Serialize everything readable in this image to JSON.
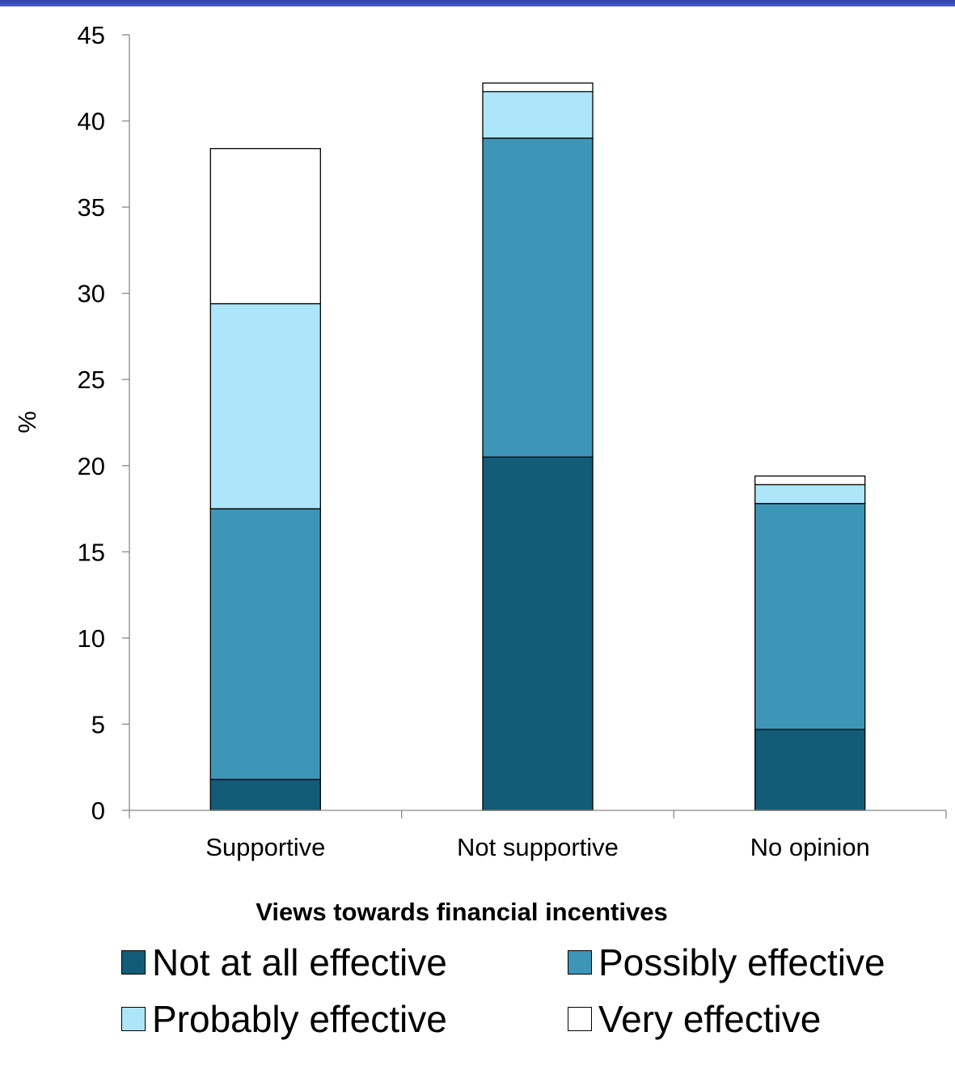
{
  "chart_data": {
    "type": "bar",
    "stacked": true,
    "categories": [
      "Supportive",
      "Not supportive",
      "No opinion"
    ],
    "series": [
      {
        "name": "Not at all effective",
        "color": "#135c77",
        "values": [
          1.8,
          20.5,
          4.7
        ]
      },
      {
        "name": "Possibly effective",
        "color": "#3d96b8",
        "values": [
          15.7,
          18.5,
          13.1
        ]
      },
      {
        "name": "Probably effective",
        "color": "#ade6f8",
        "values": [
          11.9,
          2.7,
          1.1
        ]
      },
      {
        "name": "Very effective",
        "color": "#ffffff",
        "values": [
          9.0,
          0.5,
          0.5
        ]
      }
    ],
    "ylabel": "%",
    "xlabel": "Views towards financial incentives",
    "ylim": [
      0,
      45
    ],
    "yticks": [
      0,
      5,
      10,
      15,
      20,
      25,
      30,
      35,
      40,
      45
    ],
    "grid": false,
    "legend_position": "bottom"
  }
}
